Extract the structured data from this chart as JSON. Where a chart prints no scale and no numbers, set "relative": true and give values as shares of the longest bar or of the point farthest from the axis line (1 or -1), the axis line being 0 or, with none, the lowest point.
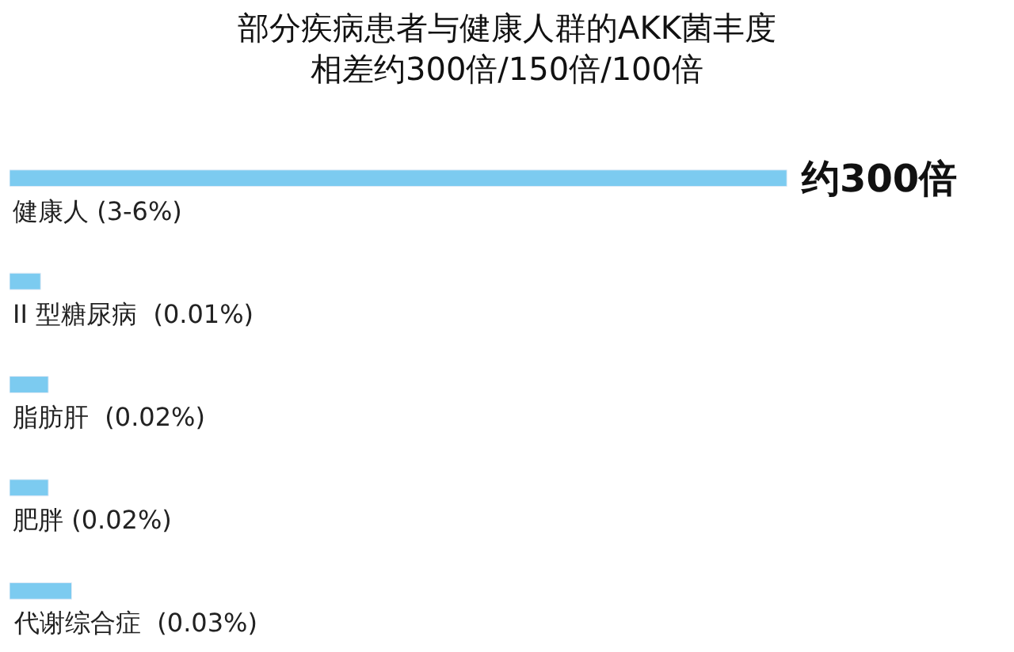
{
  "chart_data": {
    "type": "bar",
    "orientation": "horizontal",
    "relative": true,
    "title": "部分疾病患者与健康人群的AKK菌丰度",
    "subtitle": "相差约300倍/150倍/100倍",
    "categories": [
      "健康人 (3-6%)",
      "II 型糖尿病  (0.01%)",
      "脂肪肝  (0.02%)",
      "肥胖 (0.02%)",
      "代谢综合症  (0.03%)"
    ],
    "values": [
      1,
      0.04,
      0.05,
      0.05,
      0.08
    ],
    "color": "#7ccbf0",
    "annotations": [
      "约300倍"
    ],
    "legend": false
  }
}
